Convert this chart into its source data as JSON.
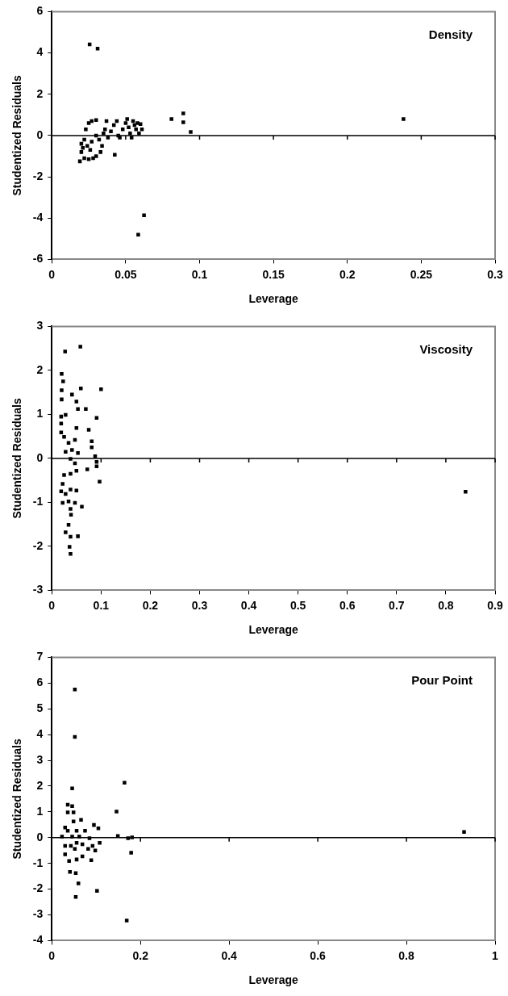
{
  "chart_data": [
    {
      "type": "scatter",
      "title": "Density",
      "xlabel": "Leverage",
      "ylabel": "Studentized Residuals",
      "xlim": [
        0,
        0.3
      ],
      "xticks": [
        0,
        0.05,
        0.1,
        0.15,
        0.2,
        0.25,
        0.3
      ],
      "ylim": [
        -6,
        6
      ],
      "yticks": [
        -6,
        -4,
        -2,
        0,
        2,
        4,
        6
      ],
      "ref_lines": [
        {
          "axis": "y",
          "value": 0
        }
      ],
      "grid": false,
      "legend": false,
      "marker": "square",
      "series": [
        {
          "color": "#000000",
          "x": [
            0.0256,
            0.031,
            0.0624,
            0.0585,
            0.081,
            0.089,
            0.089,
            0.094,
            0.238,
            0.0426,
            0.019,
            0.022,
            0.025,
            0.028,
            0.03,
            0.02,
            0.021,
            0.02,
            0.022,
            0.024,
            0.026,
            0.027,
            0.023,
            0.025,
            0.027,
            0.03,
            0.033,
            0.034,
            0.032,
            0.03,
            0.035,
            0.037,
            0.036,
            0.038,
            0.04,
            0.042,
            0.044,
            0.045,
            0.046,
            0.048,
            0.05,
            0.051,
            0.052,
            0.053,
            0.054,
            0.055,
            0.056,
            0.057,
            0.058,
            0.06,
            0.061,
            0.059
          ],
          "values": [
            4.41,
            4.21,
            -3.86,
            -4.8,
            0.8,
            1.07,
            0.64,
            0.17,
            0.8,
            -0.93,
            -1.25,
            -1.1,
            -1.15,
            -1.1,
            -1.0,
            -0.8,
            -0.6,
            -0.4,
            -0.2,
            -0.5,
            -0.7,
            -0.3,
            0.3,
            0.6,
            0.7,
            0.75,
            -0.8,
            -0.5,
            -0.2,
            0.0,
            0.1,
            0.7,
            0.3,
            -0.1,
            0.2,
            0.5,
            0.7,
            0.0,
            -0.1,
            0.3,
            0.6,
            0.8,
            0.4,
            0.1,
            -0.1,
            0.7,
            0.5,
            0.3,
            0.6,
            0.55,
            0.3,
            0.1
          ]
        }
      ]
    },
    {
      "type": "scatter",
      "title": "Viscosity",
      "xlabel": "Leverage",
      "ylabel": "Studentized Residuals",
      "xlim": [
        0,
        0.9
      ],
      "xticks": [
        0,
        0.1,
        0.2,
        0.3,
        0.4,
        0.5,
        0.6,
        0.7,
        0.8,
        0.9
      ],
      "ylim": [
        -3,
        3
      ],
      "yticks": [
        -3,
        -2,
        -1,
        0,
        1,
        2,
        3
      ],
      "ref_lines": [
        {
          "axis": "y",
          "value": 0
        }
      ],
      "grid": false,
      "legend": false,
      "marker": "square",
      "series": [
        {
          "color": "#000000",
          "x": [
            0.027,
            0.058,
            0.02,
            0.023,
            0.02,
            0.02,
            0.041,
            0.059,
            0.05,
            0.053,
            0.069,
            0.1,
            0.091,
            0.019,
            0.028,
            0.019,
            0.05,
            0.075,
            0.019,
            0.025,
            0.034,
            0.047,
            0.081,
            0.081,
            0.028,
            0.041,
            0.053,
            0.088,
            0.091,
            0.038,
            0.047,
            0.091,
            0.072,
            0.025,
            0.038,
            0.05,
            0.097,
            0.022,
            0.019,
            0.028,
            0.05,
            0.038,
            0.022,
            0.034,
            0.047,
            0.061,
            0.038,
            0.039,
            0.034,
            0.028,
            0.038,
            0.053,
            0.036,
            0.038,
            0.84
          ],
          "values": [
            2.43,
            2.54,
            1.92,
            1.75,
            1.55,
            1.34,
            1.45,
            1.59,
            1.29,
            1.12,
            1.12,
            1.57,
            0.92,
            0.95,
            0.99,
            0.79,
            0.69,
            0.65,
            0.59,
            0.49,
            0.35,
            0.42,
            0.39,
            0.25,
            0.15,
            0.19,
            0.12,
            0.05,
            -0.08,
            -0.01,
            -0.11,
            -0.18,
            -0.25,
            -0.38,
            -0.35,
            -0.28,
            -0.53,
            -0.58,
            -0.75,
            -0.81,
            -0.73,
            -0.71,
            -1.01,
            -0.98,
            -1.01,
            -1.1,
            -1.15,
            -1.28,
            -1.51,
            -1.68,
            -1.78,
            -1.77,
            -2.01,
            -2.17,
            -0.76
          ]
        }
      ]
    },
    {
      "type": "scatter",
      "title": "Pour Point",
      "xlabel": "Leverage",
      "ylabel": "Studentized Residuals",
      "xlim": [
        0,
        1
      ],
      "xticks": [
        0,
        0.2,
        0.4,
        0.6,
        0.8,
        1
      ],
      "ylim": [
        -4,
        7
      ],
      "yticks": [
        -4,
        -3,
        -2,
        -1,
        0,
        1,
        2,
        3,
        4,
        5,
        6,
        7
      ],
      "ref_lines": [
        {
          "axis": "y",
          "value": 0
        }
      ],
      "grid": false,
      "legend": false,
      "marker": "square",
      "series": [
        {
          "color": "#000000",
          "x": [
            0.052,
            0.052,
            0.046,
            0.164,
            0.146,
            0.149,
            0.172,
            0.181,
            0.179,
            0.169,
            0.102,
            0.054,
            0.06,
            0.054,
            0.041,
            0.036,
            0.046,
            0.049,
            0.036,
            0.066,
            0.095,
            0.105,
            0.108,
            0.098,
            0.089,
            0.023,
            0.03,
            0.03,
            0.03,
            0.039,
            0.056,
            0.069,
            0.082,
            0.085,
            0.075,
            0.056,
            0.049,
            0.062,
            0.043,
            0.052,
            0.069,
            0.036,
            0.046,
            0.056,
            0.092,
            0.93
          ],
          "values": [
            5.75,
            3.91,
            1.91,
            2.13,
            1.01,
            0.06,
            -0.02,
            0.01,
            -0.59,
            -3.22,
            -2.07,
            -2.3,
            -1.78,
            -1.38,
            -1.33,
            1.28,
            1.22,
            0.98,
            0.98,
            0.69,
            0.49,
            0.36,
            -0.2,
            -0.5,
            -0.88,
            0.04,
            0.39,
            -0.32,
            -0.65,
            -0.91,
            -0.85,
            -0.73,
            -0.44,
            -0.02,
            0.27,
            0.27,
            0.63,
            0.04,
            -0.32,
            -0.44,
            -0.26,
            0.27,
            0.04,
            -0.2,
            -0.32,
            0.22
          ]
        }
      ]
    }
  ]
}
